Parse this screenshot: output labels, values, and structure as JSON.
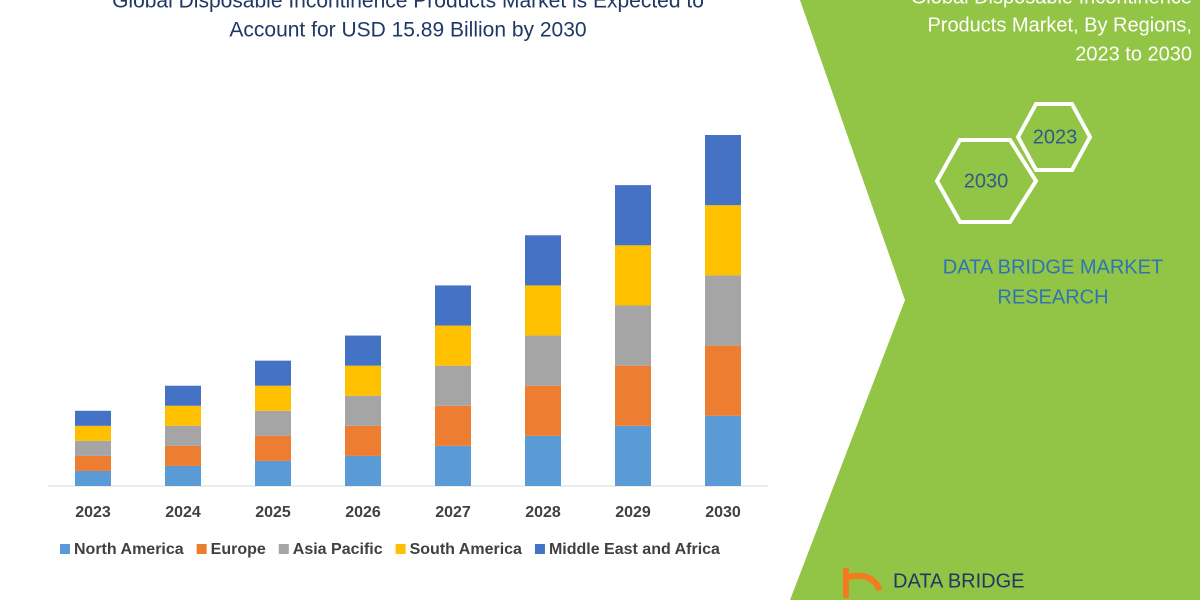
{
  "chart_data": {
    "type": "bar",
    "stacked": true,
    "title": [
      "Global Disposable Incontinence Products Market is Expected to",
      "Account for USD 15.89 Billion by 2030"
    ],
    "categories": [
      "2023",
      "2024",
      "2025",
      "2026",
      "2027",
      "2028",
      "2029",
      "2030"
    ],
    "series": [
      {
        "name": "North America",
        "color": "#5b9bd5",
        "values": [
          15,
          20,
          25,
          30,
          40,
          50,
          60,
          70
        ]
      },
      {
        "name": "Europe",
        "color": "#ed7d31",
        "values": [
          15,
          20,
          25,
          30,
          40,
          50,
          60,
          70
        ]
      },
      {
        "name": "Asia Pacific",
        "color": "#a5a5a5",
        "values": [
          15,
          20,
          25,
          30,
          40,
          50,
          60,
          70
        ]
      },
      {
        "name": "South America",
        "color": "#ffc000",
        "values": [
          15,
          20,
          25,
          30,
          40,
          50,
          60,
          70
        ]
      },
      {
        "name": "Middle East and Africa",
        "color": "#4472c4",
        "values": [
          15,
          20,
          25,
          30,
          40,
          50,
          60,
          70
        ]
      }
    ]
  },
  "side_panel": {
    "title": [
      "Global Disposable Incontinence",
      "Products Market, By Regions,",
      "2023 to 2030"
    ],
    "hexagons": [
      "2023",
      "2030"
    ],
    "brand": [
      "DATA BRIDGE MARKET",
      "RESEARCH"
    ]
  },
  "logo": {
    "text": "DATA BRIDGE"
  }
}
